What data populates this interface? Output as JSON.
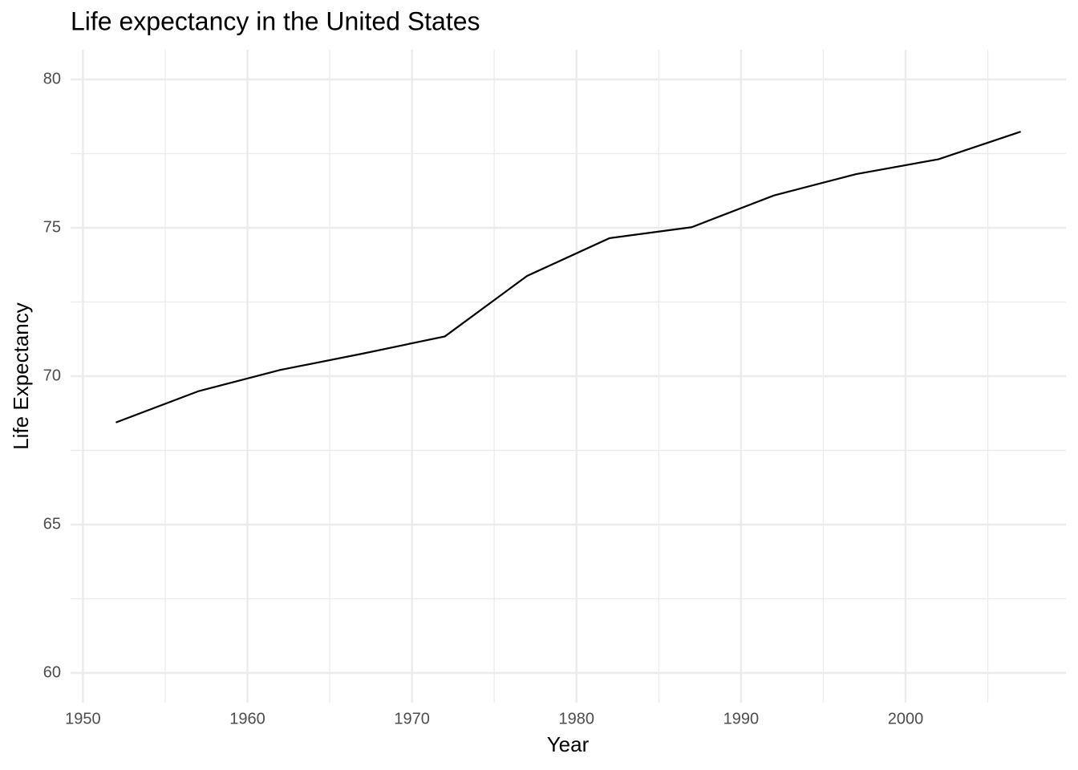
{
  "chart_data": {
    "type": "line",
    "title": "Life expectancy in the United States",
    "x_label": "Year",
    "y_label": "Life Expectancy",
    "x": [
      1952,
      1957,
      1962,
      1967,
      1972,
      1977,
      1982,
      1987,
      1992,
      1997,
      2002,
      2007
    ],
    "series": [
      {
        "name": "United States",
        "color": "#000000",
        "values": [
          68.44,
          69.49,
          70.21,
          70.76,
          71.34,
          73.38,
          74.65,
          75.02,
          76.09,
          76.81,
          77.31,
          78.24
        ]
      }
    ],
    "xlim": [
      1949.25,
      2009.75
    ],
    "xticks": [
      1950,
      1960,
      1970,
      1980,
      1990,
      2000
    ],
    "xminorticks": [
      1955,
      1965,
      1975,
      1985,
      1995,
      2005
    ],
    "ylim": [
      59,
      81
    ],
    "yticks": [
      60,
      65,
      70,
      75,
      80
    ],
    "yminorticks": [
      62.5,
      67.5,
      72.5,
      77.5
    ],
    "grid": true
  }
}
